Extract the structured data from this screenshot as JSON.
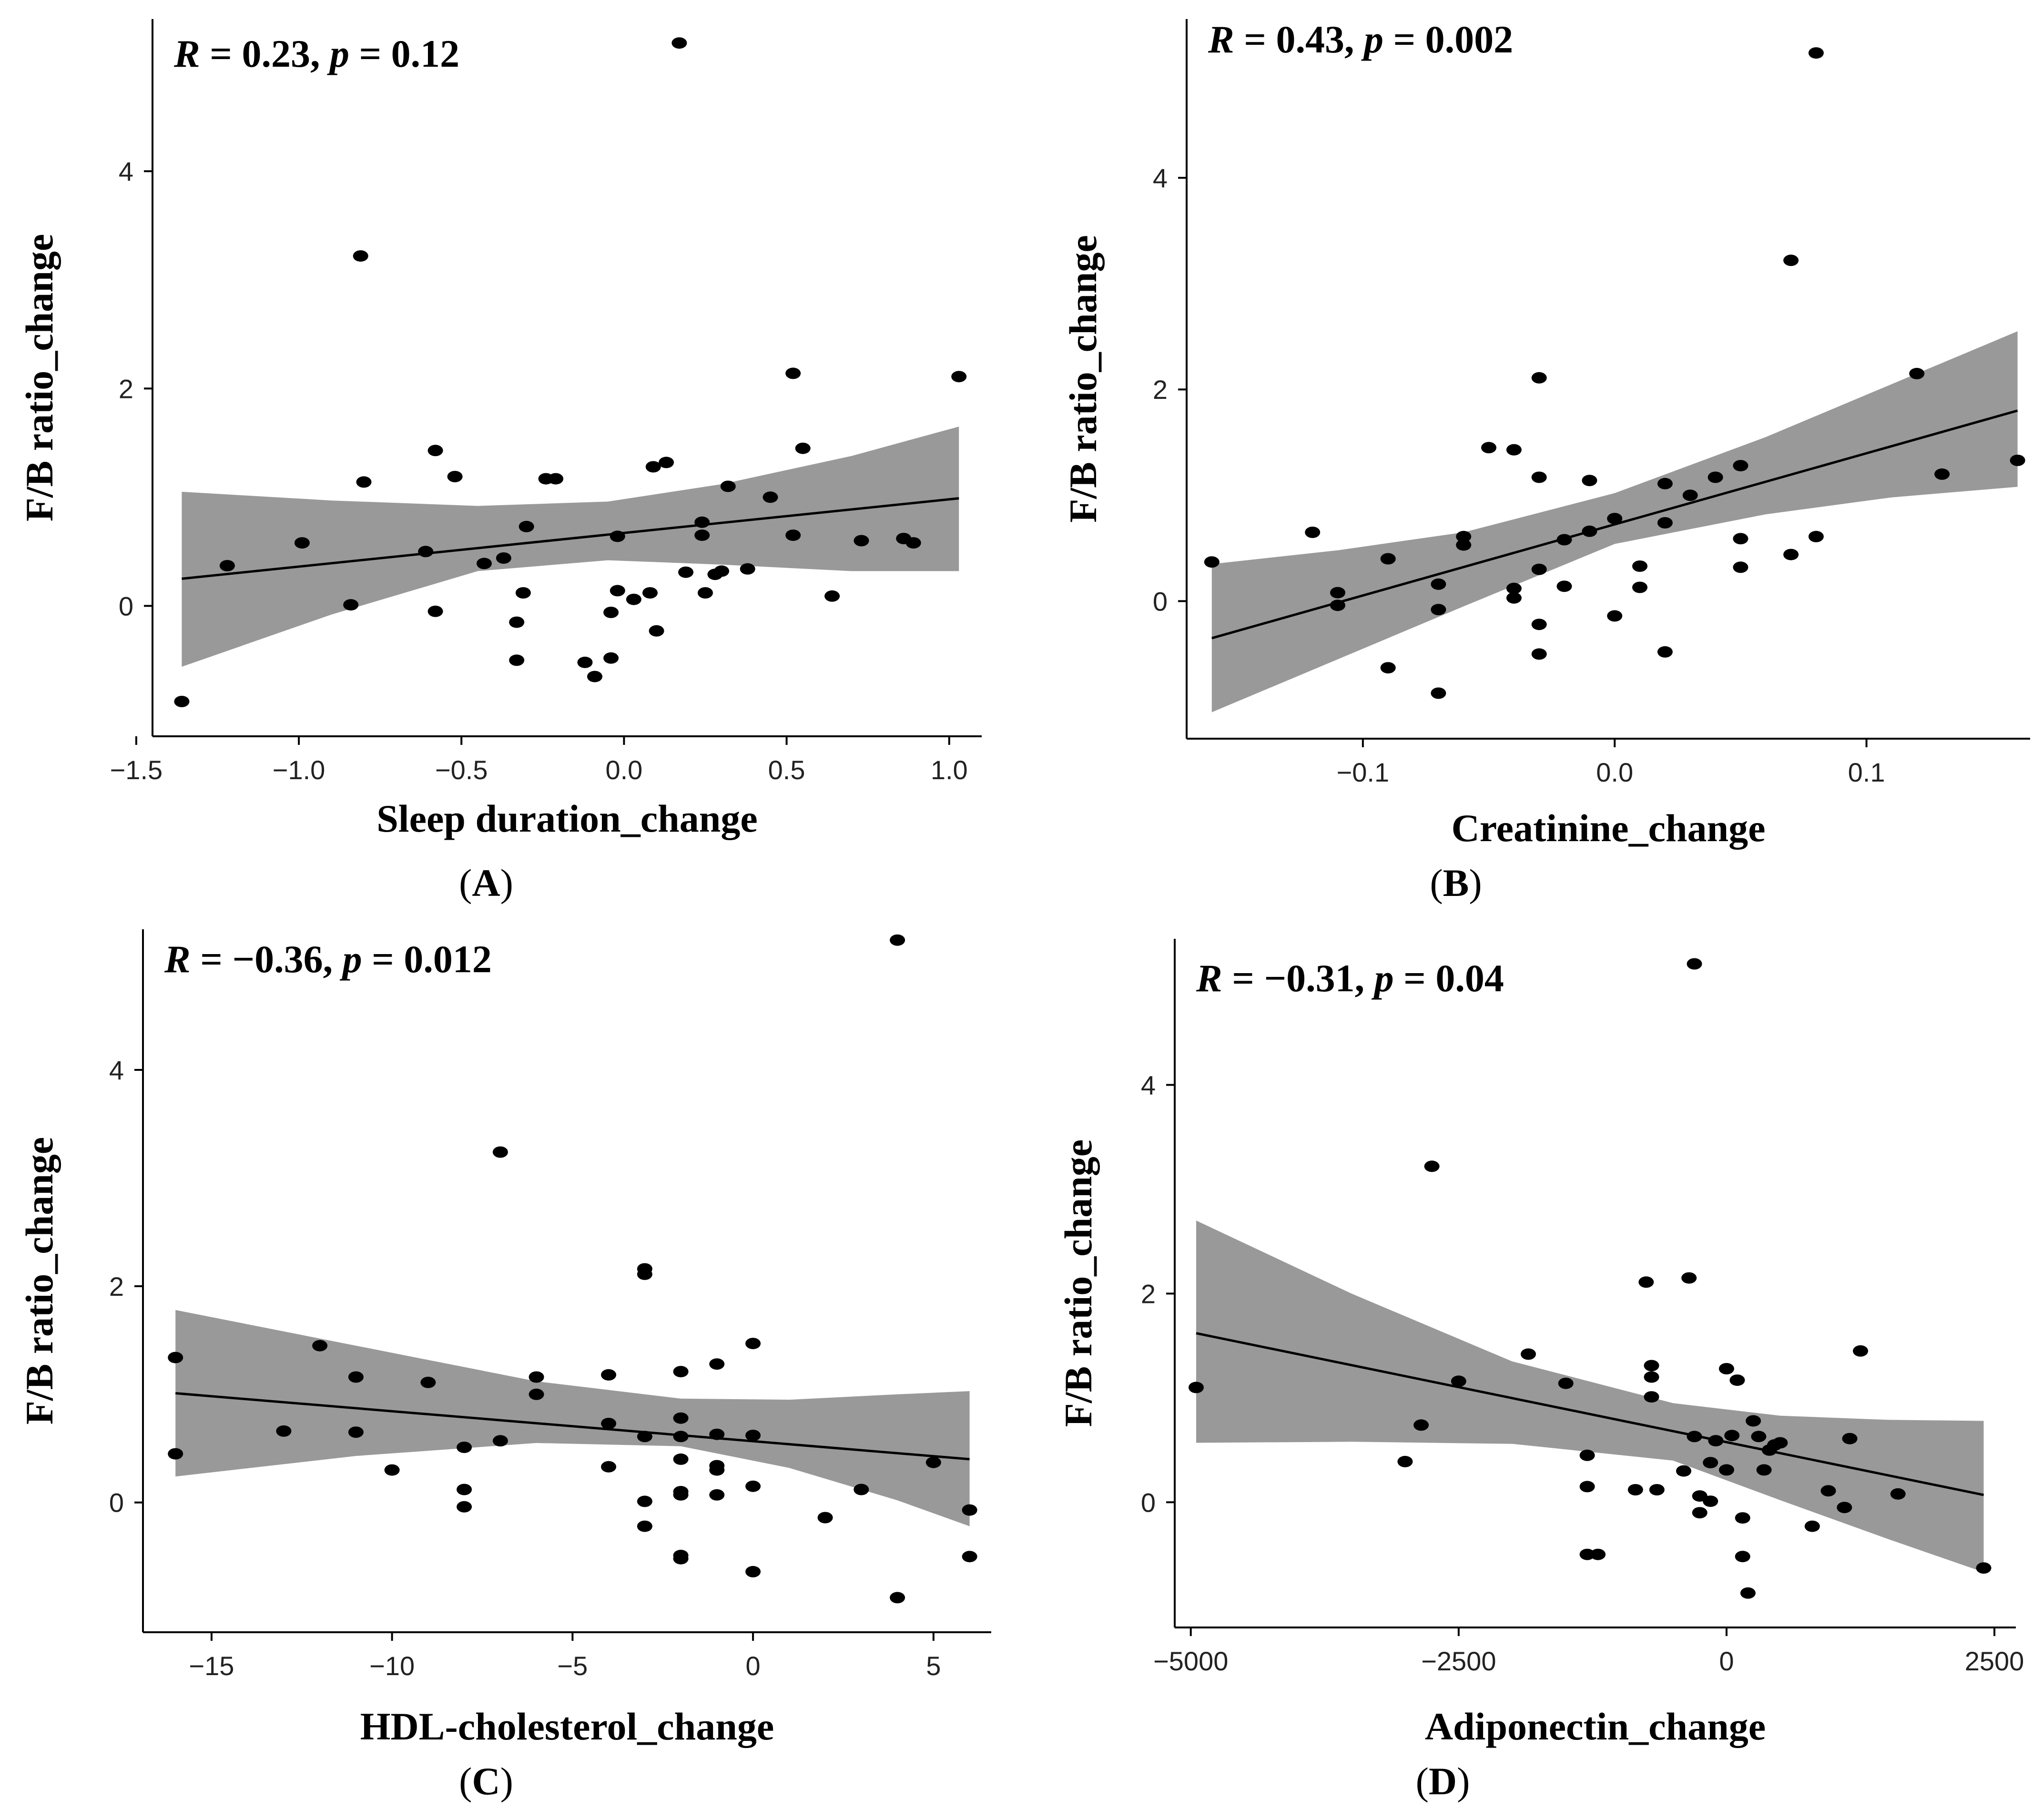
{
  "colors": {
    "band": "#999999",
    "point": "#000000",
    "line": "#000000",
    "axis": "#000000"
  },
  "chart_data": [
    {
      "type": "scatter",
      "panel_label": "A",
      "stat": {
        "r_value": "0.23",
        "p_value": "0.12"
      },
      "xlabel": "Sleep duration_change",
      "ylabel": "F/B ratio_change",
      "xlim": [
        -1.45,
        1.1
      ],
      "ylim": [
        -1.2,
        5.4
      ],
      "x_ticks": [
        -1.5,
        -1.0,
        -0.5,
        0.0,
        0.5,
        1.0
      ],
      "x_tick_labels": [
        "−1.5",
        "−1.0",
        "−0.5",
        "0.0",
        "0.5",
        "1.0"
      ],
      "y_ticks": [
        0,
        2,
        4
      ],
      "y_tick_labels": [
        "0",
        "2",
        "4"
      ],
      "fit": {
        "x0": -1.36,
        "y0": 0.25,
        "x1": 1.03,
        "y1": 0.99
      },
      "band": [
        [
          -1.36,
          1.05,
          -0.56
        ],
        [
          -0.9,
          0.97,
          -0.08
        ],
        [
          -0.45,
          0.92,
          0.32
        ],
        [
          -0.05,
          0.96,
          0.42
        ],
        [
          0.3,
          1.12,
          0.38
        ],
        [
          0.7,
          1.38,
          0.32
        ],
        [
          1.03,
          1.65,
          0.32
        ]
      ],
      "points": [
        [
          -1.36,
          -0.88
        ],
        [
          -1.22,
          0.37
        ],
        [
          -0.99,
          0.58
        ],
        [
          -0.84,
          0.01
        ],
        [
          -0.81,
          3.22
        ],
        [
          -0.8,
          1.14
        ],
        [
          -0.61,
          0.5
        ],
        [
          -0.58,
          1.43
        ],
        [
          -0.58,
          -0.05
        ],
        [
          -0.52,
          1.19
        ],
        [
          -0.43,
          0.39
        ],
        [
          -0.37,
          0.44
        ],
        [
          -0.33,
          -0.15
        ],
        [
          -0.33,
          -0.5
        ],
        [
          -0.31,
          0.12
        ],
        [
          -0.3,
          0.73
        ],
        [
          -0.24,
          1.17
        ],
        [
          -0.21,
          1.17
        ],
        [
          -0.12,
          -0.52
        ],
        [
          -0.09,
          -0.65
        ],
        [
          -0.04,
          -0.48
        ],
        [
          -0.04,
          -0.06
        ],
        [
          -0.02,
          0.64
        ],
        [
          -0.02,
          0.14
        ],
        [
          0.03,
          0.06
        ],
        [
          0.08,
          0.12
        ],
        [
          0.09,
          1.28
        ],
        [
          0.1,
          -0.23
        ],
        [
          0.13,
          1.32
        ],
        [
          0.17,
          5.18
        ],
        [
          0.19,
          0.31
        ],
        [
          0.24,
          0.77
        ],
        [
          0.24,
          0.65
        ],
        [
          0.25,
          0.12
        ],
        [
          0.28,
          0.29
        ],
        [
          0.3,
          0.32
        ],
        [
          0.32,
          1.1
        ],
        [
          0.38,
          0.34
        ],
        [
          0.45,
          1.0
        ],
        [
          0.52,
          2.14
        ],
        [
          0.52,
          0.65
        ],
        [
          0.55,
          1.45
        ],
        [
          0.64,
          0.09
        ],
        [
          0.73,
          0.6
        ],
        [
          0.86,
          0.62
        ],
        [
          0.89,
          0.58
        ],
        [
          1.03,
          2.11
        ]
      ]
    },
    {
      "type": "scatter",
      "panel_label": "B",
      "stat": {
        "r_value": "0.43",
        "p_value": "0.002"
      },
      "xlabel": "Creatinine_change",
      "ylabel": "F/B ratio_change",
      "xlim": [
        -0.17,
        0.165
      ],
      "ylim": [
        -1.3,
        5.5
      ],
      "x_ticks": [
        -0.1,
        0.0,
        0.1
      ],
      "x_tick_labels": [
        "−0.1",
        "0.0",
        "0.1"
      ],
      "y_ticks": [
        0,
        2,
        4
      ],
      "y_tick_labels": [
        "0",
        "2",
        "4"
      ],
      "fit": {
        "x0": -0.16,
        "y0": -0.35,
        "x1": 0.16,
        "y1": 1.8
      },
      "band": [
        [
          -0.16,
          0.35,
          -1.05
        ],
        [
          -0.11,
          0.48,
          -0.55
        ],
        [
          -0.06,
          0.65,
          -0.05
        ],
        [
          0.0,
          1.02,
          0.54
        ],
        [
          0.06,
          1.55,
          0.82
        ],
        [
          0.11,
          2.05,
          0.98
        ],
        [
          0.16,
          2.55,
          1.08
        ]
      ],
      "points": [
        [
          -0.16,
          0.37
        ],
        [
          -0.12,
          0.65
        ],
        [
          -0.11,
          0.08
        ],
        [
          -0.11,
          -0.04
        ],
        [
          -0.09,
          0.4
        ],
        [
          -0.09,
          -0.63
        ],
        [
          -0.07,
          0.16
        ],
        [
          -0.07,
          -0.08
        ],
        [
          -0.07,
          -0.87
        ],
        [
          -0.06,
          0.61
        ],
        [
          -0.06,
          0.53
        ],
        [
          -0.05,
          1.45
        ],
        [
          -0.04,
          1.43
        ],
        [
          -0.04,
          0.12
        ],
        [
          -0.04,
          0.03
        ],
        [
          -0.03,
          2.11
        ],
        [
          -0.03,
          1.17
        ],
        [
          -0.03,
          0.3
        ],
        [
          -0.03,
          -0.22
        ],
        [
          -0.03,
          -0.5
        ],
        [
          -0.02,
          0.58
        ],
        [
          -0.02,
          0.14
        ],
        [
          -0.01,
          1.14
        ],
        [
          -0.01,
          0.66
        ],
        [
          0.0,
          0.78
        ],
        [
          0.0,
          -0.14
        ],
        [
          0.01,
          0.33
        ],
        [
          0.01,
          0.13
        ],
        [
          0.02,
          1.11
        ],
        [
          0.02,
          0.74
        ],
        [
          0.02,
          -0.48
        ],
        [
          0.03,
          1.0
        ],
        [
          0.04,
          1.17
        ],
        [
          0.05,
          1.28
        ],
        [
          0.05,
          0.59
        ],
        [
          0.05,
          0.32
        ],
        [
          0.07,
          3.22
        ],
        [
          0.07,
          0.44
        ],
        [
          0.08,
          5.18
        ],
        [
          0.08,
          0.61
        ],
        [
          0.12,
          2.15
        ],
        [
          0.13,
          1.2
        ],
        [
          0.16,
          1.33
        ]
      ]
    },
    {
      "type": "scatter",
      "panel_label": "C",
      "stat": {
        "r_value": "−0.36",
        "p_value": "0.012"
      },
      "xlabel": "HDL-cholesterol_change",
      "ylabel": "F/B ratio_change",
      "xlim": [
        -16.9,
        6.6
      ],
      "ylim": [
        -1.2,
        5.3
      ],
      "x_ticks": [
        -15,
        -10,
        -5,
        0,
        5
      ],
      "x_tick_labels": [
        "−15",
        "−10",
        "−5",
        "0",
        "5"
      ],
      "y_ticks": [
        0,
        2,
        4
      ],
      "y_tick_labels": [
        "0",
        "2",
        "4"
      ],
      "fit": {
        "x0": -16.0,
        "y0": 1.01,
        "x1": 6.0,
        "y1": 0.4
      },
      "band": [
        [
          -16.0,
          1.78,
          0.24
        ],
        [
          -11.0,
          1.45,
          0.43
        ],
        [
          -6.0,
          1.12,
          0.55
        ],
        [
          -2.0,
          0.96,
          0.52
        ],
        [
          1.0,
          0.95,
          0.32
        ],
        [
          4.0,
          1.0,
          0.02
        ],
        [
          6.0,
          1.03,
          -0.22
        ]
      ],
      "points": [
        [
          -16.0,
          1.34
        ],
        [
          -16.0,
          0.45
        ],
        [
          -13.0,
          0.66
        ],
        [
          -12.0,
          1.45
        ],
        [
          -11.0,
          1.16
        ],
        [
          -11.0,
          0.65
        ],
        [
          -10.0,
          0.3
        ],
        [
          -9.0,
          1.11
        ],
        [
          -8.0,
          0.51
        ],
        [
          -8.0,
          0.12
        ],
        [
          -8.0,
          -0.04
        ],
        [
          -7.0,
          3.24
        ],
        [
          -7.0,
          0.57
        ],
        [
          -6.0,
          1.16
        ],
        [
          -6.0,
          1.0
        ],
        [
          -4.0,
          0.73
        ],
        [
          -3.0,
          2.16
        ],
        [
          -3.0,
          2.11
        ],
        [
          -4.0,
          1.18
        ],
        [
          -4.0,
          0.33
        ],
        [
          -3.0,
          0.61
        ],
        [
          -3.0,
          0.01
        ],
        [
          -3.0,
          -0.22
        ],
        [
          -2.0,
          1.21
        ],
        [
          -2.0,
          0.78
        ],
        [
          -2.0,
          0.61
        ],
        [
          -2.0,
          0.4
        ],
        [
          -2.0,
          0.1
        ],
        [
          -2.0,
          0.07
        ],
        [
          -2.0,
          -0.49
        ],
        [
          -2.0,
          -0.52
        ],
        [
          -1.0,
          1.28
        ],
        [
          -1.0,
          0.63
        ],
        [
          -1.0,
          0.34
        ],
        [
          -1.0,
          0.3
        ],
        [
          -1.0,
          0.07
        ],
        [
          0.0,
          1.47
        ],
        [
          0.0,
          0.62
        ],
        [
          0.0,
          0.15
        ],
        [
          0.0,
          -0.64
        ],
        [
          2.0,
          -0.14
        ],
        [
          3.0,
          0.12
        ],
        [
          4.0,
          5.2
        ],
        [
          4.0,
          -0.88
        ],
        [
          5.0,
          0.37
        ],
        [
          6.0,
          -0.07
        ],
        [
          6.0,
          -0.5
        ]
      ]
    },
    {
      "type": "scatter",
      "panel_label": "D",
      "stat": {
        "r_value": "−0.31",
        "p_value": "0.04"
      },
      "xlabel": "Adiponectin_change",
      "ylabel": "F/B ratio_change",
      "xlim": [
        -5150,
        2700
      ],
      "ylim": [
        -1.2,
        5.4
      ],
      "x_ticks": [
        -5000,
        -2500,
        0,
        2500
      ],
      "x_tick_labels": [
        "−5000",
        "−2500",
        "0",
        "2500"
      ],
      "y_ticks": [
        0,
        2,
        4
      ],
      "y_tick_labels": [
        "0",
        "2",
        "4"
      ],
      "fit": {
        "x0": -4950,
        "y0": 1.62,
        "x1": 2400,
        "y1": 0.07
      },
      "band": [
        [
          -4950,
          2.7,
          0.57
        ],
        [
          -3500,
          2.0,
          0.58
        ],
        [
          -2000,
          1.35,
          0.56
        ],
        [
          -500,
          0.95,
          0.4
        ],
        [
          500,
          0.83,
          0.02
        ],
        [
          1500,
          0.79,
          -0.35
        ],
        [
          2400,
          0.78,
          -0.67
        ]
      ],
      "points": [
        [
          -4950,
          1.1
        ],
        [
          -2750,
          3.22
        ],
        [
          -2850,
          0.74
        ],
        [
          -3000,
          0.39
        ],
        [
          -2500,
          1.16
        ],
        [
          -1850,
          1.42
        ],
        [
          -1500,
          1.14
        ],
        [
          -1300,
          0.45
        ],
        [
          -1300,
          0.15
        ],
        [
          -1300,
          -0.5
        ],
        [
          -1200,
          -0.5
        ],
        [
          -850,
          0.12
        ],
        [
          -750,
          2.11
        ],
        [
          -700,
          1.31
        ],
        [
          -700,
          1.2
        ],
        [
          -700,
          1.01
        ],
        [
          -650,
          0.12
        ],
        [
          -400,
          0.3
        ],
        [
          -350,
          2.15
        ],
        [
          -300,
          5.16
        ],
        [
          -300,
          0.63
        ],
        [
          -250,
          0.06
        ],
        [
          -250,
          -0.1
        ],
        [
          -150,
          0.01
        ],
        [
          -150,
          0.38
        ],
        [
          -100,
          0.59
        ],
        [
          0,
          1.28
        ],
        [
          0,
          0.31
        ],
        [
          50,
          0.64
        ],
        [
          100,
          1.17
        ],
        [
          150,
          -0.15
        ],
        [
          150,
          -0.52
        ],
        [
          200,
          -0.87
        ],
        [
          250,
          0.78
        ],
        [
          300,
          0.63
        ],
        [
          350,
          0.31
        ],
        [
          400,
          0.5
        ],
        [
          450,
          0.55
        ],
        [
          500,
          0.57
        ],
        [
          800,
          -0.23
        ],
        [
          950,
          0.11
        ],
        [
          1100,
          -0.05
        ],
        [
          1150,
          0.61
        ],
        [
          1250,
          1.45
        ],
        [
          1600,
          0.08
        ],
        [
          2400,
          -0.63
        ]
      ]
    }
  ]
}
